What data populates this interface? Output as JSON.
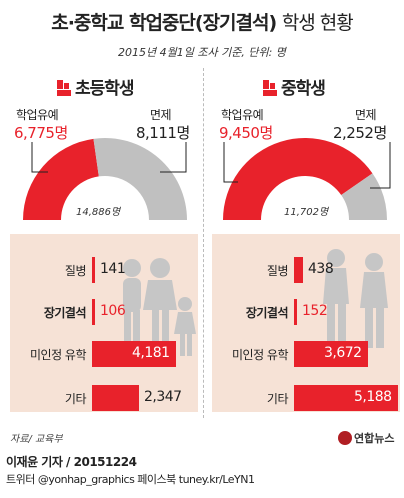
{
  "title": {
    "main": "초·중학교 학업중단(장기결석)",
    "suffix": "학생 현황"
  },
  "subtitle": "2015년 4월1일 조사 기준, 단위: 명",
  "colors": {
    "red": "#e8222b",
    "gray": "#c0c0c0",
    "panel": "#f6e2d6",
    "figure": "#c6c6c6"
  },
  "icons": {
    "section_marker": "red-flag-logo-icon",
    "figures": "student-silhouette-icon",
    "brand": "yonhap-logo-icon"
  },
  "sections": [
    {
      "heading": "초등학생",
      "grade_label": "학업유예",
      "grade_value": "6,775명",
      "exempt_label": "면제",
      "exempt_value": "8,111명",
      "total": "14,886명",
      "bars": [
        {
          "label": "질병",
          "value": "141",
          "bold": false
        },
        {
          "label": "장기결석",
          "value": "106",
          "bold": true
        },
        {
          "label": "미인정 유학",
          "value": "4,181",
          "bold": false
        },
        {
          "label": "기타",
          "value": "2,347",
          "bold": false
        }
      ]
    },
    {
      "heading": "중학생",
      "grade_label": "학업유예",
      "grade_value": "9,450명",
      "exempt_label": "면제",
      "exempt_value": "2,252명",
      "total": "11,702명",
      "bars": [
        {
          "label": "질병",
          "value": "438",
          "bold": false
        },
        {
          "label": "장기결석",
          "value": "152",
          "bold": true
        },
        {
          "label": "미인정 유학",
          "value": "3,672",
          "bold": false
        },
        {
          "label": "기타",
          "value": "5,188",
          "bold": false
        }
      ]
    }
  ],
  "chart_data": [
    {
      "type": "pie",
      "title": "초등학생",
      "categories": [
        "학업유예",
        "면제"
      ],
      "values": [
        6775,
        8111
      ],
      "total": 14886
    },
    {
      "type": "pie",
      "title": "중학생",
      "categories": [
        "학업유예",
        "면제"
      ],
      "values": [
        9450,
        2252
      ],
      "total": 11702
    },
    {
      "type": "bar",
      "title": "초등학생",
      "categories": [
        "질병",
        "장기결석",
        "미인정 유학",
        "기타"
      ],
      "values": [
        141,
        106,
        4181,
        2347
      ]
    },
    {
      "type": "bar",
      "title": "중학생",
      "categories": [
        "질병",
        "장기결석",
        "미인정 유학",
        "기타"
      ],
      "values": [
        438,
        152,
        3672,
        5188
      ]
    }
  ],
  "source": "자료/ 교육부",
  "credit": {
    "reporter": "이재윤 기자 / 20151224",
    "social": "트위터 @yonhap_graphics  페이스북 tuney.kr/LeYN1"
  },
  "brand": "연합뉴스"
}
